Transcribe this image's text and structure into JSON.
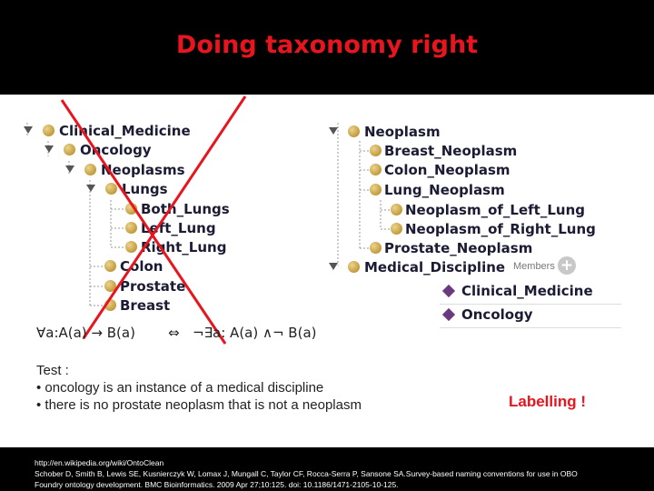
{
  "title": "Doing taxonomy right",
  "left_tree": [
    {
      "label": "Clinical_Medicine",
      "expanded": true
    },
    {
      "label": "Oncology",
      "expanded": true
    },
    {
      "label": "Neoplasms",
      "expanded": true
    },
    {
      "label": "Lungs",
      "expanded": true
    },
    {
      "label": "Both_Lungs"
    },
    {
      "label": "Left_Lung"
    },
    {
      "label": "Right_Lung"
    },
    {
      "label": "Colon"
    },
    {
      "label": "Prostate"
    },
    {
      "label": "Breast"
    }
  ],
  "right_tree": [
    {
      "label": "Neoplasm",
      "expanded": true
    },
    {
      "label": "Breast_Neoplasm"
    },
    {
      "label": "Colon_Neoplasm"
    },
    {
      "label": "Lung_Neoplasm"
    },
    {
      "label": "Neoplasm_of_Left_Lung"
    },
    {
      "label": "Neoplasm_of_Right_Lung"
    },
    {
      "label": "Prostate_Neoplasm"
    },
    {
      "label": "Medical_Discipline",
      "expanded": true
    }
  ],
  "members": {
    "label": "Members",
    "add_symbol": "+",
    "items": [
      "Clinical_Medicine",
      "Oncology"
    ]
  },
  "formula": {
    "left": "∀a:A(a) → B(a)",
    "equiv": "⇔",
    "right": "¬∃a: A(a) ∧¬ B(a)"
  },
  "test": {
    "heading": "Test :",
    "bullets": [
      "oncology is an instance of a medical discipline",
      "there is no prostate neoplasm that is not a neoplasm"
    ]
  },
  "labelling": "Labelling !",
  "footer": [
    "http://en.wikipedia.org/wiki/OntoClean",
    "Schober D, Smith B, Lewis SE, Kusnierczyk W, Lomax J, Mungall C, Taylor CF, Rocca-Serra P, Sansone SA.Survey-based naming conventions for use in OBO",
    "Foundry ontology development. BMC Bioinformatics. 2009 Apr 27;10:125. doi: 10.1186/1471-2105-10-125."
  ],
  "colors": {
    "accent": "#e8141e",
    "header_bg": "#000000",
    "class_dot": "#c39b3c",
    "individual": "#6b3a7e"
  }
}
